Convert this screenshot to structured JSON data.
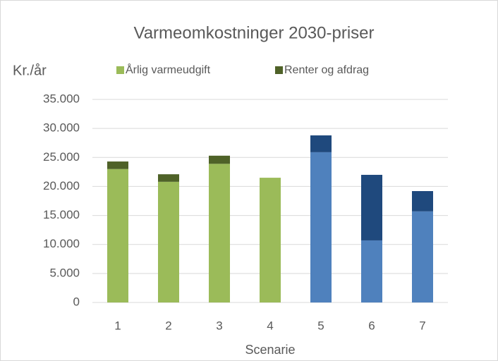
{
  "chart_data": {
    "type": "stacked_bar",
    "title": "Varmeomkostninger 2030-priser",
    "y_label": "Kr./år",
    "x_label": "Scenarie",
    "categories": [
      "1",
      "2",
      "3",
      "4",
      "5",
      "6",
      "7"
    ],
    "series": [
      {
        "name": "Årlig varmeudgift",
        "color": "#9bbb59",
        "colors": [
          "#9bbb59",
          "#9bbb59",
          "#9bbb59",
          "#9bbb59",
          "#4f81bd",
          "#4f81bd",
          "#4f81bd"
        ],
        "values": [
          23000,
          20800,
          23900,
          21500,
          25900,
          10700,
          15700
        ]
      },
      {
        "name": "Renter og afdrag",
        "color": "#4f6228",
        "colors": [
          "#4f6228",
          "#4f6228",
          "#4f6228",
          "#4f6228",
          "#1f497d",
          "#1f497d",
          "#1f497d"
        ],
        "values": [
          1300,
          1300,
          1400,
          0,
          2900,
          11300,
          3500
        ]
      }
    ],
    "ylim": [
      0,
      35000
    ],
    "yticks": [
      0,
      {
        "value": 5000,
        "label": "5.000"
      },
      {
        "value": 10000,
        "label": "10.000"
      },
      {
        "value": 15000,
        "label": "15.000"
      },
      {
        "value": 20000,
        "label": "20.000"
      },
      {
        "value": 25000,
        "label": "25.000"
      },
      {
        "value": 30000,
        "label": "30.000"
      },
      {
        "value": 35000,
        "label": "35.000"
      }
    ],
    "grid": true,
    "legend": "top"
  }
}
